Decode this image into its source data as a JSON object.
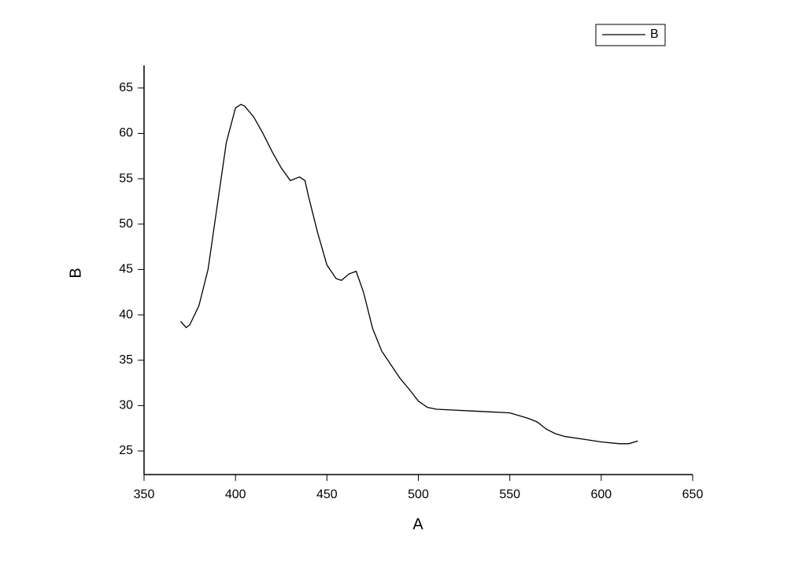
{
  "chart_data": {
    "type": "line",
    "x_label": "A",
    "y_label": "B",
    "xlim": [
      350,
      650
    ],
    "xticks": [
      350,
      400,
      450,
      500,
      550,
      600,
      650
    ],
    "ylim": [
      22.4,
      67.5
    ],
    "yticks": [
      25,
      30,
      35,
      40,
      45,
      50,
      55,
      60,
      65
    ],
    "legend_position": "upper right",
    "series": [
      {
        "name": "B",
        "color": "#000000",
        "x": [
          370,
          373,
          375,
          380,
          385,
          390,
          395,
          400,
          403,
          405,
          410,
          415,
          420,
          425,
          430,
          435,
          438,
          440,
          445,
          450,
          455,
          458,
          462,
          466,
          470,
          475,
          480,
          485,
          490,
          495,
          500,
          505,
          510,
          520,
          530,
          540,
          550,
          560,
          565,
          570,
          575,
          580,
          590,
          600,
          610,
          615,
          620
        ],
        "values": [
          39.3,
          38.6,
          38.9,
          41,
          45,
          52,
          59,
          62.8,
          63.2,
          63,
          61.8,
          60,
          58,
          56.2,
          54.8,
          55.2,
          54.8,
          53,
          49,
          45.5,
          44,
          43.8,
          44.5,
          44.8,
          42.5,
          38.5,
          36,
          34.5,
          33,
          31.8,
          30.5,
          29.8,
          29.6,
          29.5,
          29.4,
          29.3,
          29.2,
          28.6,
          28.2,
          27.4,
          26.9,
          26.6,
          26.3,
          26.0,
          25.8,
          25.8,
          26.1
        ]
      }
    ]
  }
}
